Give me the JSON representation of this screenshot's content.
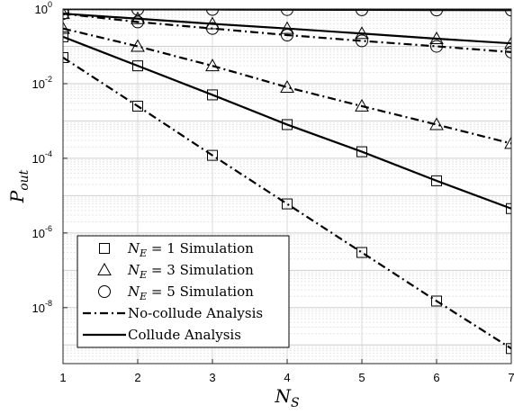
{
  "chart_data": {
    "type": "line",
    "xlabel": "N_S",
    "ylabel": "P_out",
    "x": [
      1,
      2,
      3,
      4,
      5,
      6,
      7
    ],
    "xlim": [
      1,
      7
    ],
    "ylim_log10": [
      -9.5,
      0
    ],
    "yscale": "log",
    "grid": true,
    "x_ticks": [
      "1",
      "2",
      "3",
      "4",
      "5",
      "6",
      "7"
    ],
    "y_ticks": [
      {
        "base": "10",
        "exp": "0",
        "log": 0
      },
      {
        "base": "10",
        "exp": "-2",
        "log": -2
      },
      {
        "base": "10",
        "exp": "-4",
        "log": -4
      },
      {
        "base": "10",
        "exp": "-6",
        "log": -6
      },
      {
        "base": "10",
        "exp": "-8",
        "log": -8
      }
    ],
    "legend_position": "bottom-left",
    "legend": [
      {
        "kind": "square",
        "math": "N_E = 1",
        "text": "Simulation"
      },
      {
        "kind": "triangle",
        "math": "N_E = 3",
        "text": "Simulation"
      },
      {
        "kind": "circle",
        "math": "N_E = 5",
        "text": "Simulation"
      },
      {
        "kind": "dashdot",
        "text": "No-collude Analysis"
      },
      {
        "kind": "solid",
        "text": "Collude Analysis"
      }
    ],
    "series": [
      {
        "name": "N_E = 1 No-collude Analysis",
        "style": "dashdot",
        "values": [
          0.05,
          0.0025,
          0.00012,
          6e-06,
          3e-07,
          1.5e-08,
          8e-10
        ]
      },
      {
        "name": "N_E = 1 Collude Analysis",
        "style": "solid",
        "values": [
          0.18,
          0.03,
          0.005,
          0.0008,
          0.00015,
          2.5e-05,
          4.5e-06
        ]
      },
      {
        "name": "N_E = 3 No-collude Analysis",
        "style": "dashdot",
        "values": [
          0.3,
          0.1,
          0.03,
          0.008,
          0.0025,
          0.0008,
          0.00025
        ]
      },
      {
        "name": "N_E = 3 Collude Analysis",
        "style": "solid",
        "values": [
          0.75,
          0.55,
          0.4,
          0.3,
          0.22,
          0.16,
          0.12
        ]
      },
      {
        "name": "N_E = 5 No-collude Analysis",
        "style": "dashdot",
        "values": [
          0.75,
          0.45,
          0.3,
          0.2,
          0.14,
          0.1,
          0.07
        ]
      },
      {
        "name": "N_E = 5 Collude Analysis",
        "style": "solid",
        "values": [
          0.99,
          0.98,
          0.97,
          0.96,
          0.95,
          0.94,
          0.93
        ]
      },
      {
        "name": "N_E = 1 Simulation",
        "style": "square",
        "values": [
          0.05,
          0.0025,
          0.00012,
          6e-06,
          3e-07,
          1.5e-08,
          8e-10
        ]
      },
      {
        "name": "N_E = 1 Simulation (collude)",
        "style": "square",
        "values": [
          0.18,
          0.03,
          0.005,
          0.0008,
          0.00015,
          2.5e-05,
          4.5e-06
        ]
      },
      {
        "name": "N_E = 3 Simulation",
        "style": "triangle",
        "values": [
          0.3,
          0.1,
          0.03,
          0.008,
          0.0025,
          0.0008,
          0.00025
        ]
      },
      {
        "name": "N_E = 3 Simulation (collude)",
        "style": "triangle",
        "values": [
          0.75,
          0.55,
          0.4,
          0.3,
          0.22,
          0.16,
          0.12
        ]
      },
      {
        "name": "N_E = 5 Simulation",
        "style": "circle",
        "values": [
          0.75,
          0.45,
          0.3,
          0.2,
          0.14,
          0.1,
          0.07
        ]
      },
      {
        "name": "N_E = 5 Simulation (collude)",
        "style": "circle",
        "values": [
          0.99,
          0.98,
          0.97,
          0.96,
          0.95,
          0.94,
          0.93
        ]
      }
    ]
  }
}
